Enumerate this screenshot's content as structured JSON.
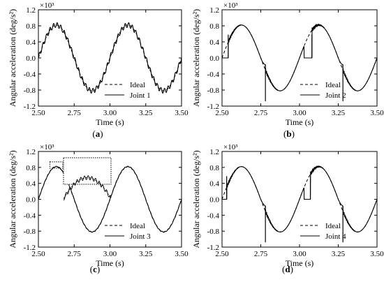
{
  "chart_data": [
    {
      "type": "line",
      "panel": "a",
      "caption_open": "(",
      "caption_letter": "a",
      "caption_close": ")",
      "xlabel": "Time (s)",
      "ylabel": "Angular acceleration (deg/s²)",
      "y_multiplier": "×10³",
      "xlim": [
        2.5,
        3.5
      ],
      "ylim": [
        -1.2,
        1.2
      ],
      "xticks": [
        "2.50",
        "2.75",
        "3.00",
        "3.25",
        "3.50"
      ],
      "yticks": [
        "-1.2",
        "-0.8",
        "-0.4",
        "0.0",
        "0.4",
        "0.8",
        "1.2"
      ],
      "legend_position": "bottom-right",
      "series": [
        {
          "name": "Ideal",
          "style": "dashed",
          "amplitude": 0.82,
          "period": 0.5,
          "peak_at": 2.625
        },
        {
          "name": "Joint 1",
          "style": "solid",
          "ripple_amplitude": 0.06,
          "ripple_period": 0.025
        }
      ]
    },
    {
      "type": "line",
      "panel": "b",
      "caption_open": "(",
      "caption_letter": "b",
      "caption_close": ")",
      "xlabel": "Time (s)",
      "ylabel": "Angular acceleration (deg/s²)",
      "y_multiplier": "×10³",
      "xlim": [
        2.5,
        3.5
      ],
      "ylim": [
        -1.2,
        1.2
      ],
      "xticks": [
        "2.50",
        "2.75",
        "3.00",
        "3.25",
        "3.50"
      ],
      "yticks": [
        "-1.2",
        "-0.8",
        "-0.4",
        "0.0",
        "0.4",
        "0.8",
        "1.2"
      ],
      "legend_position": "bottom-right",
      "series": [
        {
          "name": "Ideal",
          "style": "dashed",
          "amplitude": 0.82,
          "period": 0.5,
          "peak_at": 2.625
        },
        {
          "name": "Joint 2",
          "style": "solid",
          "flat_intervals": [
            [
              2.5,
              2.54
            ],
            [
              3.03,
              3.08
            ]
          ],
          "deviation_intervals": [
            [
              2.75,
              2.78
            ],
            [
              3.25,
              3.28
            ]
          ],
          "spike_times": [
            2.54,
            2.78,
            3.08,
            3.28
          ]
        }
      ]
    },
    {
      "type": "line",
      "panel": "c",
      "caption_open": "(",
      "caption_letter": "c",
      "caption_close": ")",
      "xlabel": "Time (s)",
      "ylabel": "Angular acceleration (deg/s²)",
      "y_multiplier": "×10³",
      "xlim": [
        2.5,
        3.5
      ],
      "ylim": [
        -1.2,
        1.2
      ],
      "xticks": [
        "2.50",
        "2.75",
        "3.00",
        "3.25",
        "3.50"
      ],
      "yticks": [
        "-1.2",
        "-0.8",
        "-0.4",
        "0.0",
        "0.4",
        "0.8",
        "1.2"
      ],
      "legend_position": "bottom-right",
      "inset": {
        "zoom_x": [
          2.58,
          2.67
        ],
        "zoom_y": [
          0.78,
          0.94
        ]
      },
      "series": [
        {
          "name": "Ideal",
          "style": "dashed",
          "amplitude": 0.82,
          "period": 0.5,
          "peak_at": 2.625
        },
        {
          "name": "Joint 3",
          "style": "solid",
          "ripple_amplitude": 0.01
        }
      ]
    },
    {
      "type": "line",
      "panel": "d",
      "caption_open": "(",
      "caption_letter": "d",
      "caption_close": ")",
      "xlabel": "Time (s)",
      "ylabel": "Angular acceleration (deg/s²)",
      "y_multiplier": "×10³",
      "xlim": [
        2.5,
        3.5
      ],
      "ylim": [
        -1.2,
        1.2
      ],
      "xticks": [
        "2.50",
        "2.75",
        "3.00",
        "3.25",
        "3.50"
      ],
      "yticks": [
        "-1.2",
        "-0.8",
        "-0.4",
        "0.0",
        "0.4",
        "0.8",
        "1.2"
      ],
      "legend_position": "bottom-right",
      "series": [
        {
          "name": "Ideal",
          "style": "dashed",
          "amplitude": 0.82,
          "period": 0.5,
          "peak_at": 2.625
        },
        {
          "name": "Joint 4",
          "style": "solid",
          "flat_intervals": [
            [
              2.5,
              2.53
            ],
            [
              3.03,
              3.07
            ]
          ],
          "deviation_intervals": [
            [
              2.74,
              2.78
            ],
            [
              3.24,
              3.28
            ]
          ],
          "spike_times": [
            2.53,
            2.78,
            3.07,
            3.28
          ]
        }
      ]
    }
  ]
}
